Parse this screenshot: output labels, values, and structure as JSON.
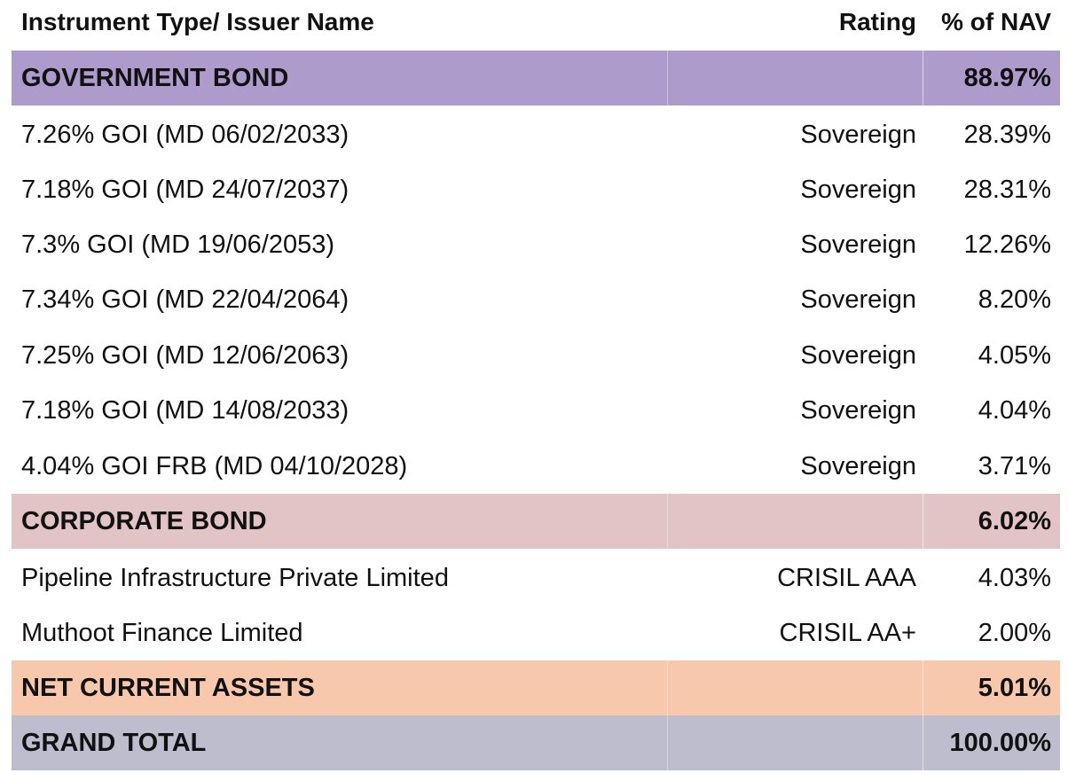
{
  "header": {
    "name": "Instrument Type/ Issuer Name",
    "rating": "Rating",
    "nav": "% of NAV"
  },
  "sections": [
    {
      "title": "GOVERNMENT BOND",
      "total": "88.97%",
      "color": "#ad9bcb",
      "rows": [
        {
          "name": "7.26% GOI (MD 06/02/2033)",
          "rating": "Sovereign",
          "nav": "28.39%"
        },
        {
          "name": "7.18% GOI (MD 24/07/2037)",
          "rating": "Sovereign",
          "nav": "28.31%"
        },
        {
          "name": "7.3% GOI (MD 19/06/2053)",
          "rating": "Sovereign",
          "nav": "12.26%"
        },
        {
          "name": "7.34% GOI (MD 22/04/2064)",
          "rating": "Sovereign",
          "nav": "8.20%"
        },
        {
          "name": "7.25% GOI (MD 12/06/2063)",
          "rating": "Sovereign",
          "nav": "4.05%"
        },
        {
          "name": "7.18% GOI (MD 14/08/2033)",
          "rating": "Sovereign",
          "nav": "4.04%"
        },
        {
          "name": "4.04% GOI FRB (MD 04/10/2028)",
          "rating": "Sovereign",
          "nav": "3.71%"
        }
      ]
    },
    {
      "title": "CORPORATE BOND",
      "total": "6.02%",
      "color": "#e2c3c6",
      "rows": [
        {
          "name": "Pipeline Infrastructure Private Limited",
          "rating": "CRISIL AAA",
          "nav": "4.03%"
        },
        {
          "name": "Muthoot Finance Limited",
          "rating": "CRISIL AA+",
          "nav": "2.00%"
        }
      ]
    },
    {
      "title": "NET CURRENT ASSETS",
      "total": "5.01%",
      "color": "#f8c8ac",
      "rows": []
    }
  ],
  "grand_total": {
    "label": "GRAND TOTAL",
    "value": "100.00%",
    "color": "#bdbdcd"
  }
}
